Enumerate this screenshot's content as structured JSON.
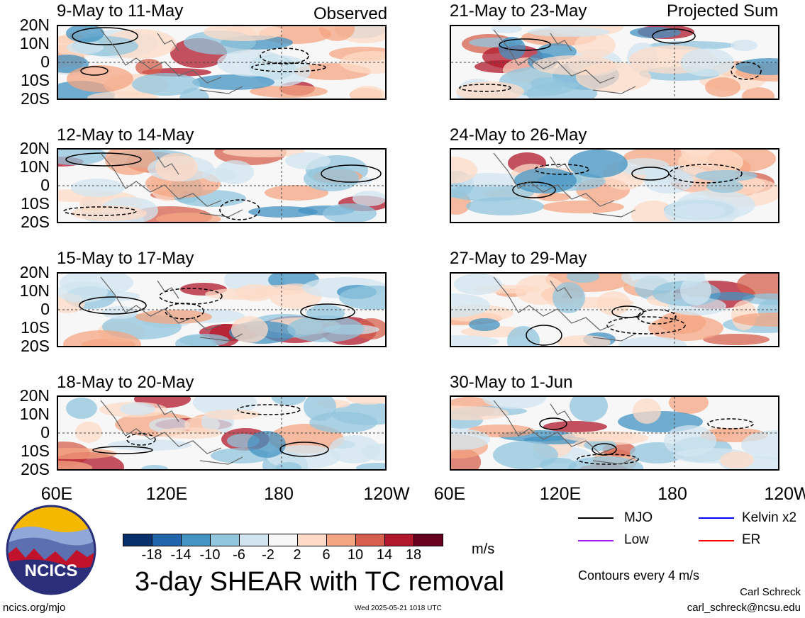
{
  "panels_observed_label": "Observed",
  "panels_projected_label": "Projected Sum",
  "left_titles": [
    "9-May to 11-May",
    "12-May to 14-May",
    "15-May to 17-May",
    "18-May to 20-May"
  ],
  "right_titles": [
    "21-May to 23-May",
    "24-May to 26-May",
    "27-May to 29-May",
    "30-May to 1-Jun"
  ],
  "y_ticks": [
    "20N",
    "10N",
    "0",
    "10S",
    "20S"
  ],
  "x_ticks": [
    "60E",
    "120E",
    "180",
    "120W"
  ],
  "colorbar": {
    "colors": [
      "#08306b",
      "#2166ac",
      "#4393c3",
      "#92c5de",
      "#d1e5f0",
      "#f7f7f7",
      "#fddbc7",
      "#f4a582",
      "#d6604d",
      "#b2182b",
      "#67001f"
    ],
    "labels": [
      "-18",
      "-14",
      "-10",
      "-6",
      "-2",
      "2",
      "6",
      "10",
      "14",
      "18"
    ],
    "units": "m/s"
  },
  "title": "3-day SHEAR with TC removal",
  "legend": [
    {
      "label": "MJO",
      "color": "#000000"
    },
    {
      "label": "Kelvin x2",
      "color": "#0000ff"
    },
    {
      "label": "Low",
      "color": "#a020f0"
    },
    {
      "label": "ER",
      "color": "#ff0000"
    }
  ],
  "contour_note": "Contours every 4 m/s",
  "logo_text": "NCICS",
  "footer_left": "ncics.org/mjo",
  "footer_center": "Wed 2025-05-21 1018 UTC",
  "author": "Carl Schreck",
  "email": "carl_schreck@ncsu.edu",
  "chart_data": {
    "type": "heatmap",
    "variable": "3-day SHEAR with TC removal",
    "units": "m/s",
    "x_axis": [
      "60E",
      "120E",
      "180",
      "120W"
    ],
    "y_axis": [
      "20N",
      "10N",
      "0",
      "10S",
      "20S"
    ],
    "contour_interval": 4,
    "color_levels": [
      -18,
      -14,
      -10,
      -6,
      -2,
      2,
      6,
      10,
      14,
      18
    ],
    "panels": [
      {
        "period": "9-May to 11-May",
        "kind": "Observed"
      },
      {
        "period": "12-May to 14-May",
        "kind": "Observed"
      },
      {
        "period": "15-May to 17-May",
        "kind": "Observed"
      },
      {
        "period": "18-May to 20-May",
        "kind": "Observed"
      },
      {
        "period": "21-May to 23-May",
        "kind": "Projected Sum"
      },
      {
        "period": "24-May to 26-May",
        "kind": "Projected Sum"
      },
      {
        "period": "27-May to 29-May",
        "kind": "Projected Sum"
      },
      {
        "period": "30-May to 1-Jun",
        "kind": "Projected Sum"
      }
    ]
  }
}
